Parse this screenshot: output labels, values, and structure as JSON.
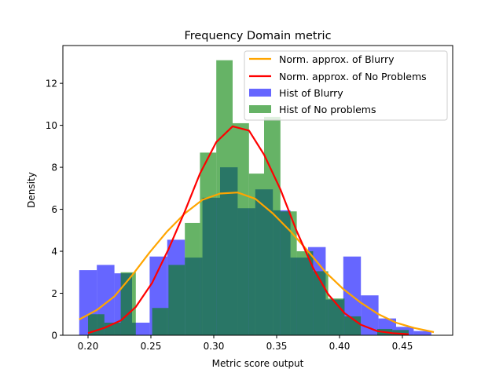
{
  "chart_data": {
    "type": "histogram+line",
    "title": "Frequency Domain metric",
    "xlabel": "Metric score output",
    "ylabel": "Density",
    "xlim": [
      0.18,
      0.49
    ],
    "ylim": [
      0,
      13.8
    ],
    "xticks": [
      "0.20",
      "0.25",
      "0.30",
      "0.35",
      "0.40",
      "0.45"
    ],
    "xtick_values": [
      0.2,
      0.25,
      0.3,
      0.35,
      0.4,
      0.45
    ],
    "yticks": [
      "0",
      "2",
      "4",
      "6",
      "8",
      "10",
      "12"
    ],
    "ytick_values": [
      0,
      2,
      4,
      6,
      8,
      10,
      12
    ],
    "legend_position": "upper right",
    "grid": false,
    "colors": {
      "blurry_hist": "#0000ff",
      "noproblems_hist": "#008000",
      "blurry_line": "#ffa500",
      "noproblems_line": "#ff0000"
    },
    "series": [
      {
        "name": "Hist of Blurry",
        "kind": "hist",
        "bins": [
          [
            0.193,
            0.207,
            3.1
          ],
          [
            0.207,
            0.221,
            3.35
          ],
          [
            0.221,
            0.235,
            2.95
          ],
          [
            0.235,
            0.249,
            0.6
          ],
          [
            0.249,
            0.263,
            3.75
          ],
          [
            0.263,
            0.277,
            4.55
          ],
          [
            0.277,
            0.291,
            3.7
          ],
          [
            0.291,
            0.305,
            6.55
          ],
          [
            0.305,
            0.319,
            8.0
          ],
          [
            0.319,
            0.333,
            6.05
          ],
          [
            0.333,
            0.347,
            6.95
          ],
          [
            0.347,
            0.361,
            5.95
          ],
          [
            0.361,
            0.375,
            3.7
          ],
          [
            0.375,
            0.389,
            4.2
          ],
          [
            0.389,
            0.403,
            1.7
          ],
          [
            0.403,
            0.417,
            3.75
          ],
          [
            0.417,
            0.431,
            1.9
          ],
          [
            0.431,
            0.445,
            0.8
          ],
          [
            0.445,
            0.459,
            0.4
          ],
          [
            0.459,
            0.473,
            0.2
          ]
        ]
      },
      {
        "name": "Hist of No problems",
        "kind": "hist",
        "bins": [
          [
            0.2,
            0.213,
            1.0
          ],
          [
            0.213,
            0.226,
            0.6
          ],
          [
            0.226,
            0.238,
            3.0
          ],
          [
            0.238,
            0.251,
            0.0
          ],
          [
            0.251,
            0.264,
            1.3
          ],
          [
            0.264,
            0.277,
            3.35
          ],
          [
            0.277,
            0.289,
            5.35
          ],
          [
            0.289,
            0.302,
            8.7
          ],
          [
            0.302,
            0.315,
            13.1
          ],
          [
            0.315,
            0.328,
            10.1
          ],
          [
            0.328,
            0.34,
            7.7
          ],
          [
            0.34,
            0.353,
            10.4
          ],
          [
            0.353,
            0.366,
            5.9
          ],
          [
            0.366,
            0.379,
            4.0
          ],
          [
            0.379,
            0.391,
            3.05
          ],
          [
            0.391,
            0.404,
            1.75
          ],
          [
            0.404,
            0.417,
            0.9
          ],
          [
            0.417,
            0.43,
            0.0
          ],
          [
            0.43,
            0.442,
            0.3
          ],
          [
            0.442,
            0.455,
            0.25
          ]
        ]
      },
      {
        "name": "Norm. approx. of Blurry",
        "kind": "line",
        "points": [
          [
            0.193,
            0.75
          ],
          [
            0.207,
            1.2
          ],
          [
            0.221,
            1.85
          ],
          [
            0.235,
            2.85
          ],
          [
            0.249,
            3.95
          ],
          [
            0.263,
            4.95
          ],
          [
            0.277,
            5.8
          ],
          [
            0.291,
            6.45
          ],
          [
            0.305,
            6.75
          ],
          [
            0.319,
            6.8
          ],
          [
            0.333,
            6.5
          ],
          [
            0.347,
            5.8
          ],
          [
            0.361,
            4.95
          ],
          [
            0.375,
            4.0
          ],
          [
            0.389,
            3.0
          ],
          [
            0.403,
            2.2
          ],
          [
            0.417,
            1.55
          ],
          [
            0.431,
            1.0
          ],
          [
            0.445,
            0.6
          ],
          [
            0.459,
            0.35
          ],
          [
            0.475,
            0.15
          ]
        ]
      },
      {
        "name": "Norm. approx. of No Problems",
        "kind": "line",
        "points": [
          [
            0.2,
            0.1
          ],
          [
            0.213,
            0.35
          ],
          [
            0.226,
            0.7
          ],
          [
            0.238,
            1.35
          ],
          [
            0.251,
            2.5
          ],
          [
            0.264,
            4.1
          ],
          [
            0.277,
            5.9
          ],
          [
            0.289,
            7.7
          ],
          [
            0.302,
            9.2
          ],
          [
            0.315,
            9.95
          ],
          [
            0.328,
            9.75
          ],
          [
            0.34,
            8.6
          ],
          [
            0.353,
            6.95
          ],
          [
            0.366,
            4.95
          ],
          [
            0.379,
            3.2
          ],
          [
            0.391,
            1.95
          ],
          [
            0.404,
            1.05
          ],
          [
            0.417,
            0.5
          ],
          [
            0.43,
            0.2
          ],
          [
            0.442,
            0.1
          ],
          [
            0.455,
            0.05
          ]
        ]
      }
    ],
    "legend": [
      "Norm. approx. of Blurry",
      "Norm. approx. of No Problems",
      "Hist of Blurry",
      "Hist of No problems"
    ]
  }
}
